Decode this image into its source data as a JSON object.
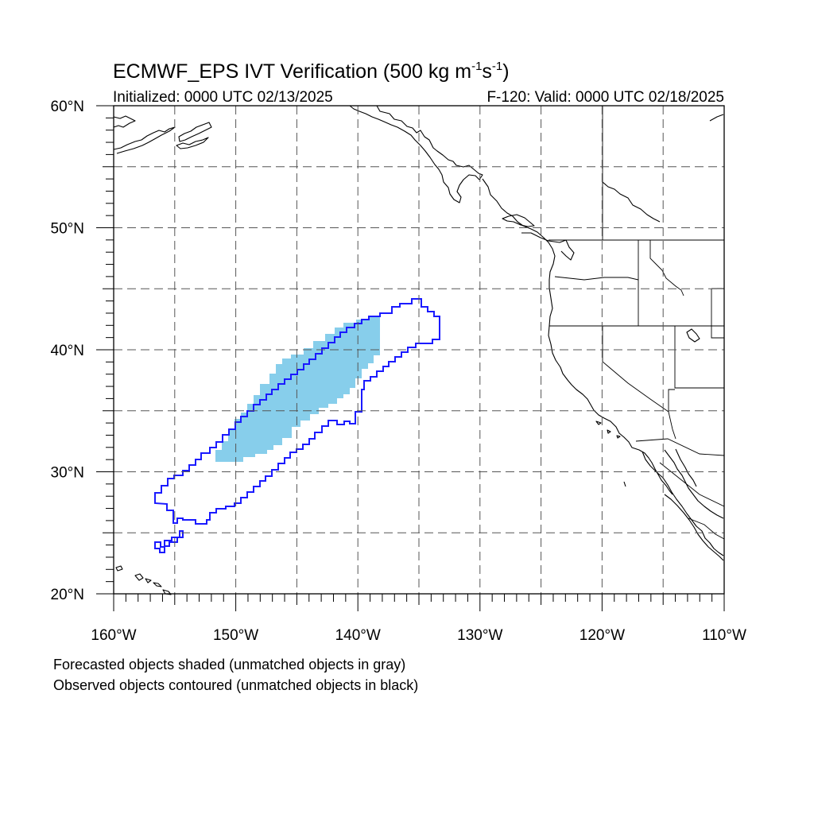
{
  "title": {
    "main_prefix": "ECMWF_EPS IVT Verification (500 kg m",
    "exp1": "-1",
    "mid": "s",
    "exp2": "-1",
    "suffix": ")"
  },
  "subtitle_left": "Initialized: 0000 UTC 02/13/2025",
  "subtitle_right": "F-120: Valid: 0000 UTC 02/18/2025",
  "lat_labels": [
    "60°N",
    "50°N",
    "40°N",
    "30°N",
    "20°N"
  ],
  "lon_labels": [
    "160°W",
    "150°W",
    "140°W",
    "130°W",
    "120°W",
    "110°W"
  ],
  "footer": {
    "line1": "Forecasted objects shaded (unmatched objects in gray)",
    "line2": "Observed objects contoured (unmatched objects in black)"
  },
  "colors": {
    "forecast_matched": "#87ceeb",
    "observed_matched": "#1a1aff",
    "coastline": "#000000"
  },
  "map": {
    "lon_range": [
      -160,
      -110
    ],
    "lat_range": [
      20,
      60
    ],
    "grid_spacing_deg": 5,
    "projection": "cylindrical equidistant"
  }
}
